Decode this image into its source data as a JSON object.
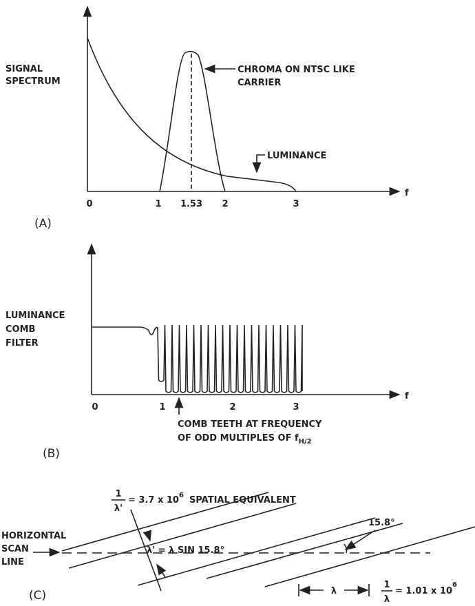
{
  "panel_a": {
    "y_label": [
      "SIGNAL",
      "SPECTRUM"
    ],
    "x_label": "f",
    "ticks": [
      "0",
      "1",
      "1.53",
      "2",
      "3"
    ],
    "chroma_label": [
      "CHROMA ON NTSC LIKE",
      "CARRIER"
    ],
    "luminance_label": "LUMINANCE",
    "caption": "(A)"
  },
  "panel_b": {
    "y_label": [
      "LUMINANCE",
      "COMB",
      "FILTER"
    ],
    "x_label": "f",
    "ticks": [
      "0",
      "1",
      "2",
      "3"
    ],
    "note": [
      "COMB TEETH AT FREQUENCY",
      "OF ODD MULTIPLES OF ",
      "f",
      "H/2"
    ],
    "caption": "(B)"
  },
  "panel_c": {
    "spatial_fraction": [
      "1",
      "λ'"
    ],
    "spatial_value": [
      "= 3.7 x 10",
      "6",
      "SPATIAL EQUIVALENT"
    ],
    "scan_label": [
      "HORIZONTAL",
      "SCAN",
      "LINE"
    ],
    "lambda_prime_formula": "λ' = λ SIN 15.8°",
    "angle": "15.8°",
    "lambda": "λ",
    "freq_fraction": [
      "1",
      "λ"
    ],
    "freq_value": [
      "= 1.01 x 10",
      "6"
    ],
    "caption": "(C)"
  }
}
